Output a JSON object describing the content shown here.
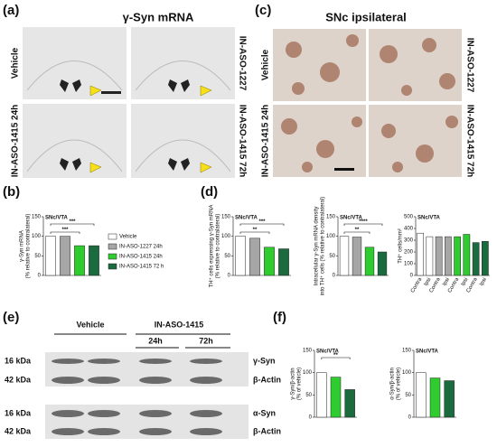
{
  "panel_labels": [
    "(a)",
    "(b)",
    "(c)",
    "(d)",
    "(e)",
    "(f)"
  ],
  "panel_a": {
    "title": "γ-Syn mRNA",
    "labels": [
      "Vehicle",
      "IN-ASO-1227",
      "IN-ASO-1415 24h",
      "IN-ASO-1415 72h"
    ]
  },
  "panel_c": {
    "title": "SNc ipsilateral",
    "labels": [
      "Vehicle",
      "IN-ASO-1227",
      "IN-ASO-1415 24h",
      "IN-ASO-1415 72h"
    ]
  },
  "panel_e": {
    "groups": [
      "Vehicle",
      "IN-ASO-1415"
    ],
    "subgroups": [
      "24h",
      "72h"
    ],
    "markers": [
      "16 kDa",
      "42 kDa",
      "16 kDa",
      "42 kDa"
    ],
    "bands": [
      "γ-Syn",
      "β-Actin",
      "α-Syn",
      "β-Actin"
    ]
  },
  "chart_data": [
    {
      "type": "bar",
      "title": "SNc/VTA",
      "ylabel": [
        "γ-Syn mRNA",
        "(% relative to contralateral)"
      ],
      "categories": [
        "Vehicle",
        "IN-ASO-1227 24h",
        "IN-ASO-1415 24h",
        "IN-ASO-1415 72 h"
      ],
      "legend": true,
      "values": [
        100,
        100,
        76,
        76
      ],
      "colors": [
        "#ffffff",
        "#a6a6a6",
        "#2ecc2e",
        "#1b6b3e"
      ],
      "ylim": [
        0,
        150
      ],
      "yticks": [
        0,
        50,
        100,
        150
      ],
      "annotations": [
        "***",
        "***"
      ]
    },
    {
      "type": "bar",
      "title": "SNc/VTA",
      "ylabel": [
        "TH⁺ cells expressing γ-Syn mRNA",
        "(% relative to contralateral)"
      ],
      "categories": [
        null,
        null,
        null,
        null
      ],
      "values": [
        100,
        95,
        72,
        68
      ],
      "colors": [
        "#ffffff",
        "#a6a6a6",
        "#2ecc2e",
        "#1b6b3e"
      ],
      "ylim": [
        0,
        150
      ],
      "yticks": [
        0,
        50,
        100,
        150
      ],
      "annotations": [
        "***",
        "**"
      ]
    },
    {
      "type": "bar",
      "title": "SNc/VTA",
      "ylabel": [
        "Intracellular γ-Syn mRNA density",
        "into TH⁺ cells (% relative to contralateral)"
      ],
      "categories": [
        null,
        null,
        null,
        null
      ],
      "values": [
        100,
        98,
        72,
        60
      ],
      "colors": [
        "#ffffff",
        "#a6a6a6",
        "#2ecc2e",
        "#1b6b3e"
      ],
      "ylim": [
        0,
        150
      ],
      "yticks": [
        0,
        50,
        100,
        150
      ],
      "annotations": [
        "****",
        "**"
      ]
    },
    {
      "type": "bar",
      "title": "SNc/VTA",
      "ylabel": [
        "TH⁺ cells/mm²"
      ],
      "categories": [
        "Contra",
        "Ipsi",
        "Contra",
        "Ipsi",
        "Contra",
        "Ipsi",
        "Contra",
        "Ipsi"
      ],
      "values": [
        360,
        330,
        330,
        330,
        330,
        350,
        280,
        290
      ],
      "colors": [
        "#ffffff",
        "#ffffff",
        "#a6a6a6",
        "#a6a6a6",
        "#2ecc2e",
        "#2ecc2e",
        "#1b6b3e",
        "#1b6b3e"
      ],
      "ylim": [
        0,
        500
      ],
      "yticks": [
        0,
        100,
        200,
        300,
        400,
        500
      ],
      "annotations": []
    },
    {
      "type": "bar",
      "title": "SNc/VTA",
      "ylabel": [
        "γ-Syn/β-actin",
        "(% of vehicle)"
      ],
      "categories": [
        null,
        null,
        null
      ],
      "values": [
        100,
        90,
        62
      ],
      "colors": [
        "#ffffff",
        "#2ecc2e",
        "#1b6b3e"
      ],
      "ylim": [
        0,
        150
      ],
      "yticks": [
        0,
        50,
        100,
        150
      ],
      "annotations": [
        "**"
      ]
    },
    {
      "type": "bar",
      "title": "SNc/VTA",
      "ylabel": [
        "α-Syn/β-actin",
        "(% of vehicle)"
      ],
      "categories": [
        null,
        null,
        null
      ],
      "values": [
        100,
        88,
        82
      ],
      "colors": [
        "#ffffff",
        "#2ecc2e",
        "#1b6b3e"
      ],
      "ylim": [
        0,
        150
      ],
      "yticks": [
        0,
        50,
        100,
        150
      ],
      "annotations": []
    }
  ]
}
